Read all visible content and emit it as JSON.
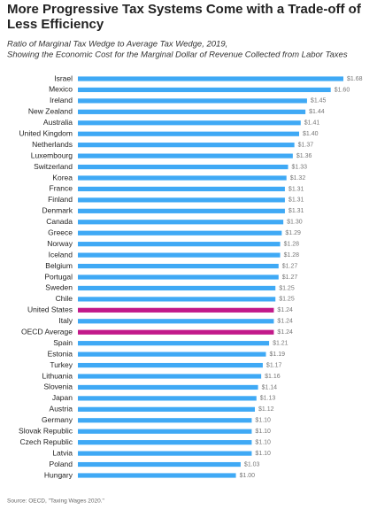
{
  "chart_data": {
    "type": "bar",
    "orientation": "horizontal",
    "title": "More Progressive Tax Systems Come with a Trade-off of Less Efficiency",
    "subtitle": [
      "Ratio of Marginal Tax Wedge to Average Tax Wedge, 2019,",
      "Showing the Economic Cost for the Marginal Dollar of Revenue Collected from Labor Taxes"
    ],
    "categories": [
      "Israel",
      "Mexico",
      "Ireland",
      "New Zealand",
      "Australia",
      "United Kingdom",
      "Netherlands",
      "Luxembourg",
      "Switzerland",
      "Korea",
      "France",
      "Finland",
      "Denmark",
      "Canada",
      "Greece",
      "Norway",
      "Iceland",
      "Belgium",
      "Portugal",
      "Sweden",
      "Chile",
      "United States",
      "Italy",
      "OECD Average",
      "Spain",
      "Estonia",
      "Turkey",
      "Lithuania",
      "Slovenia",
      "Japan",
      "Austria",
      "Germany",
      "Slovak Republic",
      "Czech Republic",
      "Latvia",
      "Poland",
      "Hungary"
    ],
    "values": [
      1.68,
      1.6,
      1.45,
      1.44,
      1.41,
      1.4,
      1.37,
      1.36,
      1.33,
      1.32,
      1.31,
      1.31,
      1.31,
      1.3,
      1.29,
      1.28,
      1.28,
      1.27,
      1.27,
      1.25,
      1.25,
      1.24,
      1.24,
      1.24,
      1.21,
      1.19,
      1.17,
      1.16,
      1.14,
      1.13,
      1.12,
      1.1,
      1.1,
      1.1,
      1.1,
      1.03,
      1.0
    ],
    "value_labels": [
      "$1.68",
      "$1.60",
      "$1.45",
      "$1.44",
      "$1.41",
      "$1.40",
      "$1.37",
      "$1.36",
      "$1.33",
      "$1.32",
      "$1.31",
      "$1.31",
      "$1.31",
      "$1.30",
      "$1.29",
      "$1.28",
      "$1.28",
      "$1.27",
      "$1.27",
      "$1.25",
      "$1.25",
      "$1.24",
      "$1.24",
      "$1.24",
      "$1.21",
      "$1.19",
      "$1.17",
      "$1.16",
      "$1.14",
      "$1.13",
      "$1.12",
      "$1.10",
      "$1.10",
      "$1.10",
      "$1.10",
      "$1.03",
      "$1.00"
    ],
    "colors": [
      "#3fa9f5",
      "#3fa9f5",
      "#3fa9f5",
      "#3fa9f5",
      "#3fa9f5",
      "#3fa9f5",
      "#3fa9f5",
      "#3fa9f5",
      "#3fa9f5",
      "#3fa9f5",
      "#3fa9f5",
      "#3fa9f5",
      "#3fa9f5",
      "#3fa9f5",
      "#3fa9f5",
      "#3fa9f5",
      "#3fa9f5",
      "#3fa9f5",
      "#3fa9f5",
      "#3fa9f5",
      "#3fa9f5",
      "#c2198a",
      "#3fa9f5",
      "#c2198a",
      "#3fa9f5",
      "#3fa9f5",
      "#3fa9f5",
      "#3fa9f5",
      "#3fa9f5",
      "#3fa9f5",
      "#3fa9f5",
      "#3fa9f5",
      "#3fa9f5",
      "#3fa9f5",
      "#3fa9f5",
      "#3fa9f5",
      "#3fa9f5"
    ],
    "source": "Source: OECD, \"Taxing Wages 2020.\""
  }
}
